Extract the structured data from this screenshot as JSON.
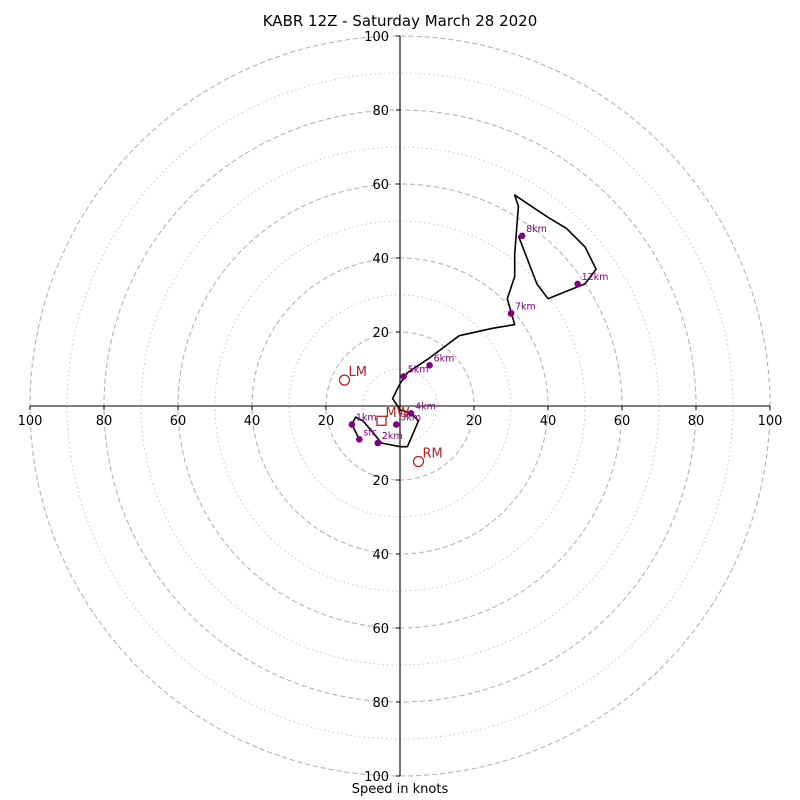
{
  "chart_data": {
    "type": "hodograph",
    "title": "KABR 12Z - Saturday March 28 2020",
    "xlabel": "Speed in knots",
    "ylabel": "",
    "xlim": [
      -100,
      100
    ],
    "ylim": [
      -100,
      100
    ],
    "x_ticks": [
      "100",
      "80",
      "60",
      "40",
      "20",
      "20",
      "40",
      "60",
      "80",
      "100"
    ],
    "y_ticks": [
      "100",
      "80",
      "60",
      "40",
      "20",
      "20",
      "40",
      "60",
      "80",
      "100"
    ],
    "rings_major": [
      20,
      40,
      60,
      80,
      100
    ],
    "rings_minor": [
      10,
      30,
      50,
      70,
      90
    ],
    "grid": true,
    "hodograph_line": {
      "color": "#000000",
      "u": [
        -11,
        -13,
        -12,
        -10,
        -5,
        0,
        2,
        5,
        3,
        0,
        -2,
        -1,
        0,
        2,
        5,
        8,
        16,
        25,
        31,
        29,
        31,
        31,
        32,
        31,
        37,
        40,
        45,
        50,
        53,
        50,
        45,
        40,
        37,
        32
      ],
      "v": [
        -9,
        -5,
        -3,
        -4,
        -10,
        -11,
        -11,
        -4,
        -2,
        -1,
        2,
        4,
        6,
        9,
        11,
        13,
        19,
        21,
        22,
        29,
        35,
        41,
        54,
        57,
        53,
        51,
        48,
        43,
        37,
        33,
        31,
        29,
        33,
        46
      ]
    },
    "height_markers": {
      "color": "#800080",
      "points": [
        {
          "label": "sfc",
          "u": -11,
          "v": -9
        },
        {
          "label": "1km",
          "u": -13,
          "v": -5
        },
        {
          "label": "2km",
          "u": -6,
          "v": -10
        },
        {
          "label": "3km",
          "u": -1,
          "v": -5
        },
        {
          "label": "4km",
          "u": 3,
          "v": -2
        },
        {
          "label": "5km",
          "u": 1,
          "v": 8
        },
        {
          "label": "6km",
          "u": 8,
          "v": 11
        },
        {
          "label": "7km",
          "u": 30,
          "v": 25
        },
        {
          "label": "8km",
          "u": 33,
          "v": 46
        },
        {
          "label": "12km",
          "u": 48,
          "v": 33
        }
      ]
    },
    "storm_motion": {
      "color": "#b22222",
      "points": [
        {
          "label": "LM",
          "u": -15,
          "v": 7,
          "marker": "circle"
        },
        {
          "label": "RM",
          "u": 5,
          "v": -15,
          "marker": "circle"
        },
        {
          "label": "MW",
          "u": -5,
          "v": -4,
          "marker": "square"
        }
      ]
    }
  }
}
